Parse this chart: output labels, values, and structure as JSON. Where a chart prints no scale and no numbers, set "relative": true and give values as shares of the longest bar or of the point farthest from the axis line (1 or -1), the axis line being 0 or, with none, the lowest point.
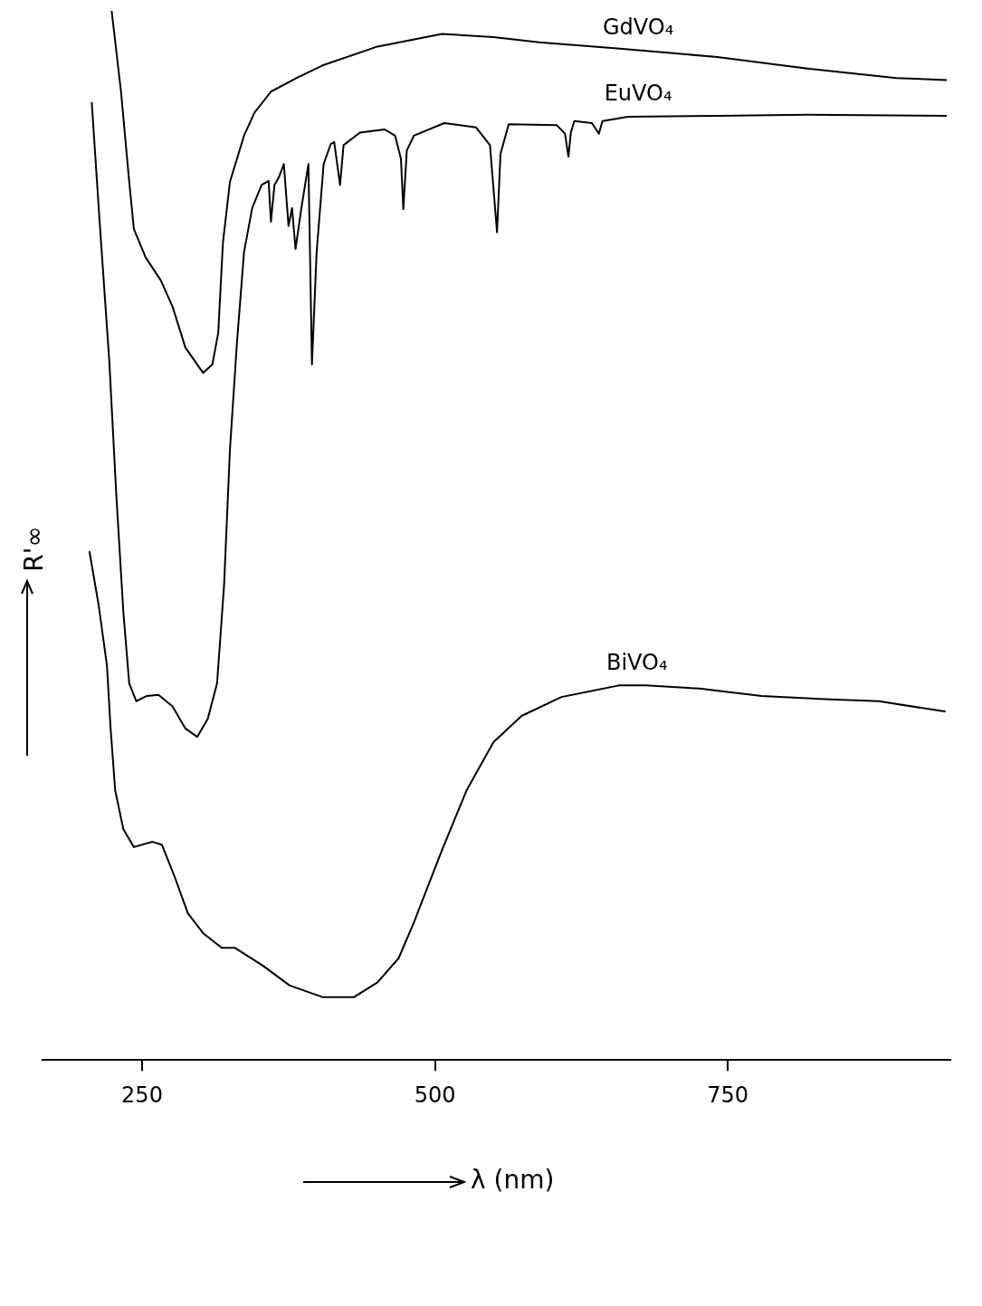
{
  "chart_data": {
    "type": "line",
    "relative": true,
    "xlabel": "λ (nm)",
    "ylabel": "R'∞",
    "xlim": [
      165,
      940
    ],
    "xticks": [
      250,
      500,
      750
    ],
    "grid": false,
    "marker": "none",
    "line_style": "solid",
    "tick_labels": "x",
    "series": [
      {
        "name": "GdVO₄",
        "color": "#000000",
        "x": [
          224,
          232,
          239,
          243,
          253,
          266,
          276,
          287,
          302,
          310,
          315,
          319,
          325,
          337,
          346,
          360,
          382,
          404,
          451,
          506,
          550,
          589,
          658,
          741,
          818,
          894,
          937
        ],
        "values": [
          1,
          0.923,
          0.837,
          0.792,
          0.765,
          0.743,
          0.718,
          0.679,
          0.655,
          0.663,
          0.693,
          0.779,
          0.837,
          0.881,
          0.903,
          0.923,
          0.936,
          0.948,
          0.966,
          0.978,
          0.975,
          0.97,
          0.964,
          0.956,
          0.945,
          0.936,
          0.934
        ]
      },
      {
        "name": "EuVO₄",
        "color": "#000000",
        "x": [
          207,
          214,
          222,
          228,
          234,
          239,
          245,
          254,
          264,
          276,
          287,
          297,
          306,
          314,
          320,
          325,
          331,
          337,
          344,
          352,
          358,
          360,
          363,
          367,
          371,
          375,
          378,
          381,
          386,
          392,
          395,
          399,
          405,
          411,
          414,
          419,
          422,
          436,
          457,
          466,
          471,
          473,
          476,
          482,
          508,
          535,
          547,
          553,
          556,
          563,
          604,
          611,
          614,
          616,
          619,
          634,
          640,
          643,
          665,
          741,
          818,
          937
        ],
        "values": [
          0.913,
          0.795,
          0.666,
          0.538,
          0.427,
          0.359,
          0.342,
          0.347,
          0.348,
          0.337,
          0.316,
          0.308,
          0.325,
          0.359,
          0.453,
          0.582,
          0.684,
          0.77,
          0.812,
          0.834,
          0.838,
          0.799,
          0.834,
          0.842,
          0.854,
          0.795,
          0.812,
          0.773,
          0.812,
          0.854,
          0.663,
          0.77,
          0.854,
          0.873,
          0.875,
          0.834,
          0.872,
          0.884,
          0.887,
          0.881,
          0.859,
          0.811,
          0.867,
          0.881,
          0.893,
          0.889,
          0.872,
          0.789,
          0.864,
          0.892,
          0.891,
          0.883,
          0.861,
          0.884,
          0.895,
          0.893,
          0.883,
          0.895,
          0.899,
          0.9,
          0.901,
          0.9
        ]
      },
      {
        "name": "BiVO₄",
        "color": "#000000",
        "x": [
          205,
          213,
          220,
          223,
          227,
          234,
          243,
          259,
          267,
          278,
          289,
          302,
          318,
          329,
          353,
          376,
          404,
          431,
          451,
          469,
          482,
          506,
          527,
          550,
          574,
          608,
          657,
          680,
          726,
          779,
          833,
          879,
          936
        ],
        "values": [
          0.485,
          0.433,
          0.376,
          0.318,
          0.257,
          0.22,
          0.203,
          0.208,
          0.205,
          0.174,
          0.14,
          0.121,
          0.107,
          0.107,
          0.09,
          0.071,
          0.06,
          0.06,
          0.074,
          0.097,
          0.131,
          0.2,
          0.257,
          0.303,
          0.328,
          0.346,
          0.357,
          0.357,
          0.354,
          0.347,
          0.344,
          0.342,
          0.332
        ]
      }
    ]
  }
}
